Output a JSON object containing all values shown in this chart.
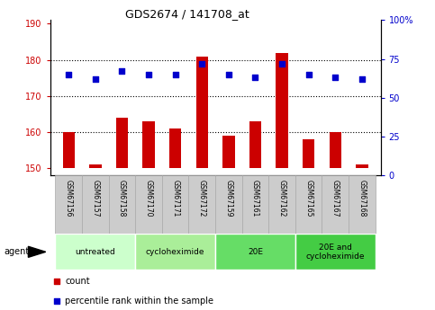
{
  "title": "GDS2674 / 141708_at",
  "samples": [
    "GSM67156",
    "GSM67157",
    "GSM67158",
    "GSM67170",
    "GSM67171",
    "GSM67172",
    "GSM67159",
    "GSM67161",
    "GSM67162",
    "GSM67165",
    "GSM67167",
    "GSM67168"
  ],
  "counts": [
    160,
    151,
    164,
    163,
    161,
    181,
    159,
    163,
    182,
    158,
    160,
    151
  ],
  "percentiles": [
    65,
    62,
    67,
    65,
    65,
    72,
    65,
    63,
    72,
    65,
    63,
    62
  ],
  "count_baseline": 150,
  "ylim_left": [
    148,
    191
  ],
  "ylim_right": [
    0,
    100
  ],
  "yticks_left": [
    150,
    160,
    170,
    180,
    190
  ],
  "yticks_right": [
    0,
    25,
    50,
    75,
    100
  ],
  "ytick_labels_right": [
    "0",
    "25",
    "50",
    "75",
    "100%"
  ],
  "bar_color": "#cc0000",
  "dot_color": "#0000cc",
  "bar_width": 0.45,
  "groups": [
    {
      "label": "untreated",
      "start": 0,
      "end": 3,
      "color": "#ccffcc"
    },
    {
      "label": "cycloheximide",
      "start": 3,
      "end": 6,
      "color": "#aaee99"
    },
    {
      "label": "20E",
      "start": 6,
      "end": 9,
      "color": "#66dd66"
    },
    {
      "label": "20E and\ncycloheximide",
      "start": 9,
      "end": 12,
      "color": "#44cc44"
    }
  ],
  "legend_count_label": "count",
  "legend_pct_label": "percentile rank within the sample",
  "agent_label": "agent",
  "grid_color": "#000000",
  "background_color": "#ffffff",
  "tick_label_color_left": "#cc0000",
  "tick_label_color_right": "#0000cc",
  "label_box_color": "#cccccc",
  "label_box_edge": "#aaaaaa"
}
